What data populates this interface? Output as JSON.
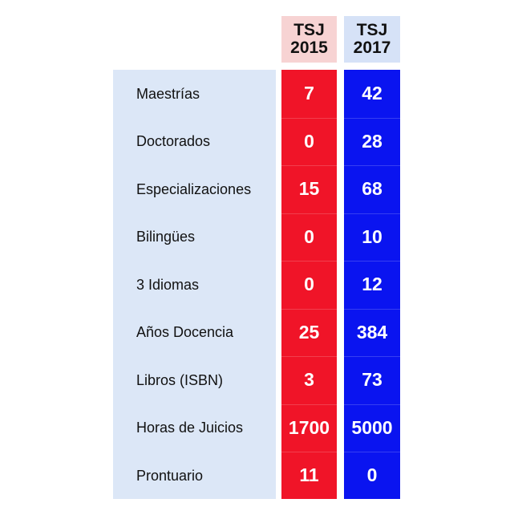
{
  "chart_data": {
    "type": "table",
    "columns": [
      "TSJ 2015",
      "TSJ 2017"
    ],
    "headers": [
      {
        "line1": "TSJ",
        "line2": "2015"
      },
      {
        "line1": "TSJ",
        "line2": "2017"
      }
    ],
    "rows": [
      {
        "label": "Maestrías",
        "values": [
          "7",
          "42"
        ]
      },
      {
        "label": "Doctorados",
        "values": [
          "0",
          "28"
        ]
      },
      {
        "label": "Especializaciones",
        "values": [
          "15",
          "68"
        ]
      },
      {
        "label": "Bilingües",
        "values": [
          "0",
          "10"
        ]
      },
      {
        "label": "3 Idiomas",
        "values": [
          "0",
          "12"
        ]
      },
      {
        "label": "Años Docencia",
        "values": [
          "25",
          "384"
        ]
      },
      {
        "label": "Libros (ISBN)",
        "values": [
          "3",
          "73"
        ]
      },
      {
        "label": "Horas de Juicios",
        "values": [
          "1700",
          "5000"
        ]
      },
      {
        "label": "Prontuario",
        "values": [
          "11",
          "0"
        ]
      }
    ],
    "colors": {
      "col_2015": "#f01428",
      "col_2017": "#0a14f0",
      "header_2015": "#f7d3d3",
      "header_2017": "#d6e2f7",
      "label_panel": "#dce7f7"
    }
  }
}
